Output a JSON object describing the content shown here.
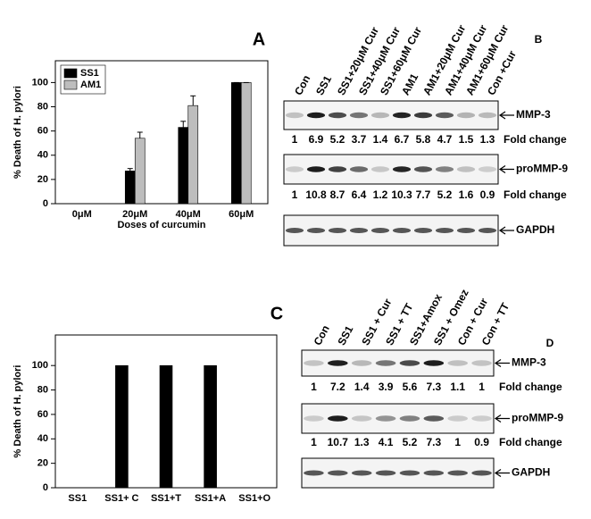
{
  "chart_data": [
    {
      "type": "bar",
      "panel": "A",
      "y_label": "% Death of H. pylori",
      "x_label": "Doses of curcumin",
      "categories": [
        "0μM",
        "20μM",
        "40μM",
        "60μM"
      ],
      "series": [
        {
          "name": "SS1",
          "color": "#000000",
          "values": [
            0,
            27,
            63,
            100
          ],
          "errors": [
            0,
            2,
            5,
            0
          ]
        },
        {
          "name": "AM1",
          "color": "#bdbdbd",
          "values": [
            0,
            54,
            81,
            100
          ],
          "errors": [
            0,
            5,
            8,
            0
          ]
        }
      ],
      "ylim": [
        0,
        118
      ],
      "yticks": [
        0,
        20,
        40,
        60,
        80,
        100
      ],
      "legend": "upper left"
    },
    {
      "type": "bar",
      "panel": "C",
      "y_label": "% Death of H. pylori",
      "categories": [
        "SS1",
        "SS1+ C",
        "SS1+T",
        "SS1+A",
        "SS1+O"
      ],
      "series": [
        {
          "color": "#000000",
          "values": [
            0,
            100,
            100,
            100,
            0
          ]
        }
      ],
      "ylim": [
        0,
        125
      ],
      "yticks": [
        0,
        20,
        40,
        60,
        80,
        100
      ]
    }
  ],
  "blots": [
    {
      "panel": "B",
      "lanes": [
        "Con",
        "SS1",
        "SS1+20μM Cur",
        "SS1+40μM Cur",
        "SS1+60μM Cur",
        "AM1",
        "AM1+20μM Cur",
        "AM1+40μM Cur",
        "AM1+60μM Cur",
        "Con +Cur"
      ],
      "rows": [
        {
          "label": "MMP-3",
          "fold_label": "Fold change",
          "fold": [
            1,
            6.9,
            5.2,
            3.7,
            1.4,
            6.7,
            5.8,
            4.7,
            1.5,
            1.3
          ]
        },
        {
          "label": "proMMP-9",
          "fold_label": "Fold change",
          "fold": [
            1,
            10.8,
            8.7,
            6.4,
            1.2,
            10.3,
            7.7,
            5.2,
            1.6,
            0.9
          ]
        },
        {
          "label": "GAPDH"
        }
      ]
    },
    {
      "panel": "D",
      "lanes": [
        "Con",
        "SS1",
        "SS1 + Cur",
        "SS1 + TT",
        "SS1+Amox",
        "SS1 + Omez",
        "Con + Cur",
        "Con + TT"
      ],
      "rows": [
        {
          "label": "MMP-3",
          "fold_label": "Fold change",
          "fold": [
            1,
            7.2,
            1.4,
            3.9,
            5.6,
            7.3,
            1.1,
            1
          ]
        },
        {
          "label": "proMMP-9",
          "fold_label": "Fold change",
          "fold": [
            1,
            10.7,
            1.3,
            4.1,
            5.2,
            7.3,
            1,
            0.9
          ]
        },
        {
          "label": "GAPDH"
        }
      ]
    }
  ]
}
